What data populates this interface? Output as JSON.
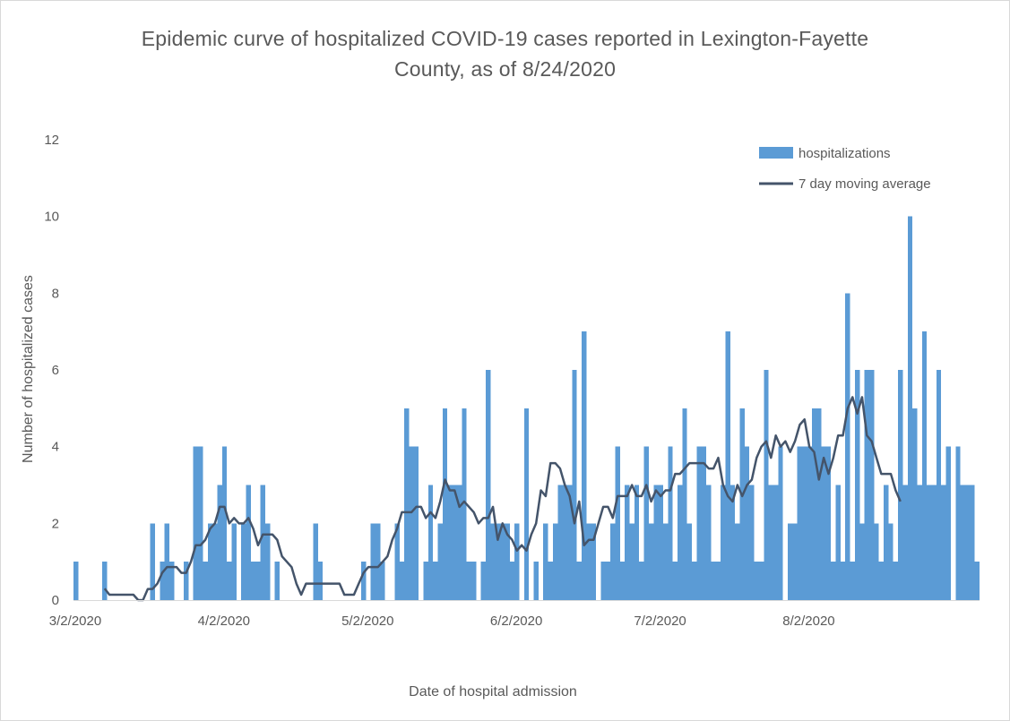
{
  "chart_data": {
    "type": "bar",
    "title_line1": "Epidemic curve of hospitalized COVID-19 cases reported in Lexington-Fayette",
    "title_line2": "County, as of 8/24/2020",
    "xlabel": "Date of hospital admission",
    "ylabel": "Number of hospitalized cases",
    "ylim": [
      0,
      12
    ],
    "yticks": [
      "0",
      "2",
      "4",
      "6",
      "8",
      "10",
      "12"
    ],
    "xticks": [
      "3/2/2020",
      "4/2/2020",
      "5/2/2020",
      "6/2/2020",
      "7/2/2020",
      "8/2/2020"
    ],
    "start_date": "3/2/2020",
    "grid": false,
    "legend_position": "top-right",
    "colors": {
      "bars": "#5b9bd5",
      "line": "#44546a",
      "text": "#595959"
    },
    "series": [
      {
        "name": "hospitalizations",
        "type": "bar",
        "values": [
          1,
          0,
          0,
          0,
          0,
          0,
          1,
          0,
          0,
          0,
          0,
          0,
          0,
          0,
          0,
          0,
          2,
          0,
          1,
          2,
          1,
          0,
          0,
          1,
          0,
          4,
          4,
          1,
          2,
          2,
          3,
          4,
          1,
          2,
          0,
          2,
          3,
          1,
          1,
          3,
          2,
          0,
          1,
          0,
          0,
          0,
          0,
          0,
          0,
          0,
          2,
          1,
          0,
          0,
          0,
          0,
          0,
          0,
          0,
          0,
          1,
          0,
          2,
          2,
          1,
          0,
          0,
          2,
          1,
          5,
          4,
          4,
          0,
          1,
          3,
          1,
          2,
          5,
          3,
          3,
          3,
          5,
          1,
          1,
          0,
          1,
          6,
          2,
          2,
          2,
          2,
          1,
          2,
          0,
          5,
          0,
          1,
          0,
          2,
          1,
          2,
          3,
          3,
          3,
          6,
          1,
          7,
          2,
          2,
          0,
          1,
          1,
          2,
          4,
          1,
          3,
          2,
          3,
          1,
          4,
          2,
          3,
          3,
          2,
          4,
          1,
          3,
          5,
          2,
          1,
          4,
          4,
          3,
          1,
          1,
          3,
          7,
          3,
          2,
          5,
          4,
          3,
          1,
          1,
          6,
          3,
          3,
          4,
          0,
          2,
          2,
          4,
          4,
          4,
          5,
          5,
          4,
          4,
          1,
          3,
          1,
          8,
          1,
          6,
          2,
          6,
          6,
          2,
          1,
          3,
          2,
          1,
          6,
          3,
          10,
          5,
          3,
          7,
          3,
          3,
          6,
          3,
          4,
          0,
          4,
          3,
          3,
          3,
          1
        ]
      },
      {
        "name": "7 day moving average",
        "type": "line",
        "start_index": 6,
        "values": [
          0.3,
          0.14,
          0.14,
          0.14,
          0.14,
          0.14,
          0.14,
          0,
          0,
          0.29,
          0.29,
          0.43,
          0.71,
          0.86,
          0.86,
          0.86,
          0.71,
          0.71,
          1.0,
          1.43,
          1.43,
          1.57,
          1.86,
          2.0,
          2.43,
          2.43,
          2.0,
          2.14,
          2.0,
          2.0,
          2.14,
          1.86,
          1.43,
          1.71,
          1.71,
          1.71,
          1.57,
          1.14,
          1.0,
          0.86,
          0.43,
          0.14,
          0.43,
          0.43,
          0.43,
          0.43,
          0.43,
          0.43,
          0.43,
          0.43,
          0.14,
          0.14,
          0.14,
          0.43,
          0.71,
          0.86,
          0.86,
          0.86,
          1.0,
          1.14,
          1.57,
          1.86,
          2.29,
          2.29,
          2.29,
          2.43,
          2.43,
          2.14,
          2.29,
          2.14,
          2.57,
          3.14,
          2.86,
          2.86,
          2.43,
          2.57,
          2.43,
          2.29,
          2.0,
          2.14,
          2.14,
          2.43,
          1.57,
          2.0,
          1.71,
          1.57,
          1.29,
          1.43,
          1.29,
          1.71,
          2.0,
          2.86,
          2.71,
          3.57,
          3.57,
          3.43,
          3.0,
          2.71,
          2.0,
          2.57,
          1.43,
          1.57,
          1.57,
          2.0,
          2.43,
          2.43,
          2.14,
          2.71,
          2.71,
          2.71,
          3.0,
          2.71,
          2.71,
          3.0,
          2.57,
          2.86,
          2.71,
          2.86,
          2.86,
          3.29,
          3.29,
          3.43,
          3.57,
          3.57,
          3.57,
          3.57,
          3.43,
          3.43,
          3.71,
          3.0,
          2.71,
          2.57,
          3.0,
          2.71,
          3.0,
          3.14,
          3.71,
          4.0,
          4.14,
          3.71,
          4.29,
          4.0,
          4.14,
          3.86,
          4.14,
          4.57,
          4.71,
          4.0,
          3.86,
          3.14,
          3.71,
          3.29,
          3.71,
          4.29,
          4.29,
          5.0,
          5.29,
          4.86,
          5.29,
          4.29,
          4.14,
          3.71,
          3.29,
          3.29,
          3.29,
          2.86,
          2.57
        ]
      }
    ]
  }
}
